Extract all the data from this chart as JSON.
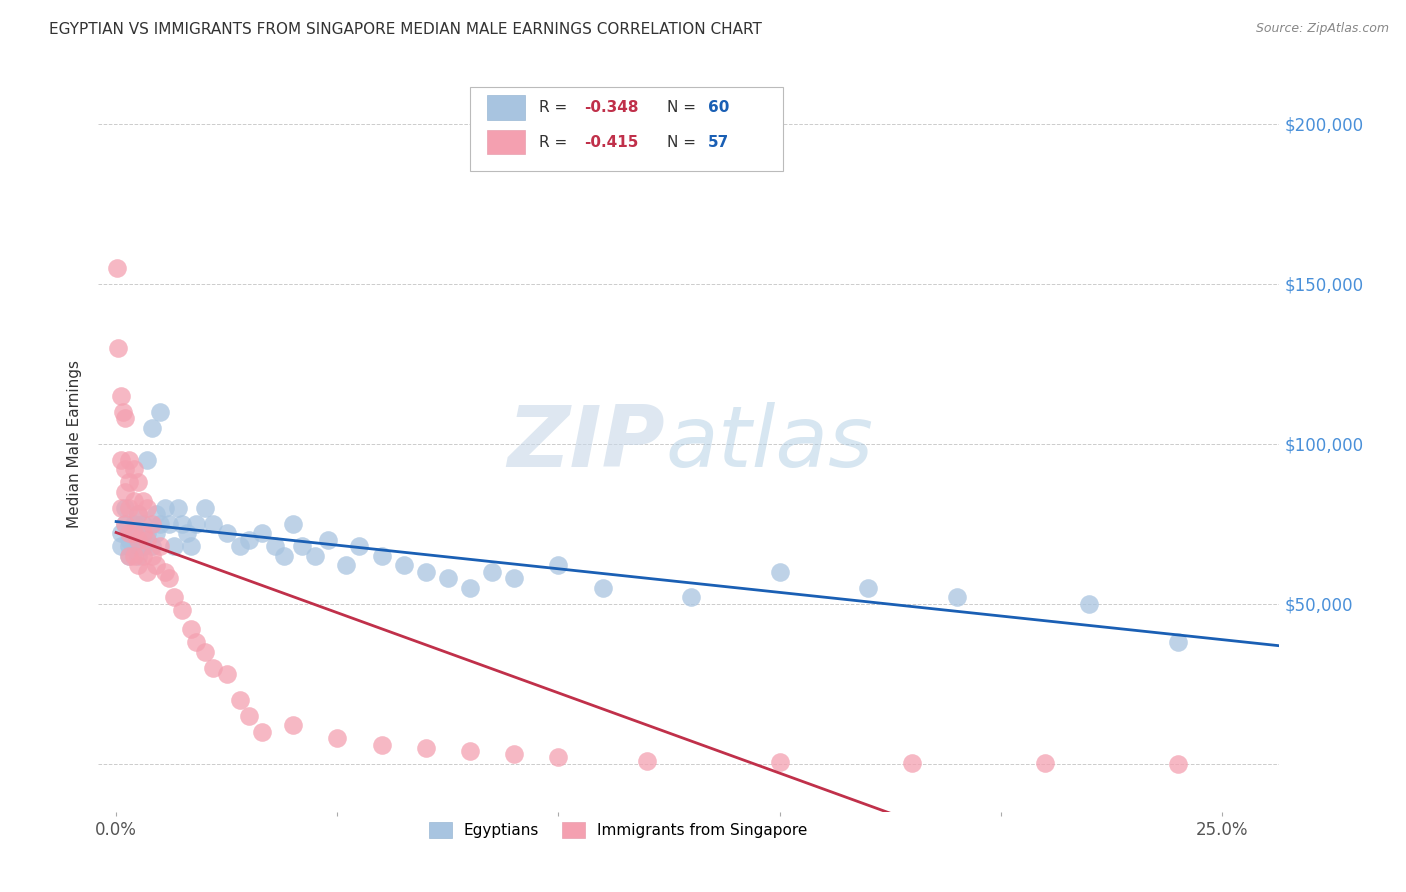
{
  "title": "EGYPTIAN VS IMMIGRANTS FROM SINGAPORE MEDIAN MALE EARNINGS CORRELATION CHART",
  "source": "Source: ZipAtlas.com",
  "ylabel": "Median Male Earnings",
  "xlabel_ticks": [
    "0.0%",
    "",
    "",
    "",
    "",
    "25.0%"
  ],
  "xlabel_vals": [
    0.0,
    0.05,
    0.1,
    0.15,
    0.2,
    0.25
  ],
  "ylabel_ticks": [
    "$200,000",
    "$150,000",
    "$100,000",
    "$50,000",
    ""
  ],
  "ylabel_vals": [
    200000,
    150000,
    100000,
    50000,
    0
  ],
  "ylim": [
    -15000,
    215000
  ],
  "xlim": [
    -0.004,
    0.263
  ],
  "blue_color": "#a8c4e0",
  "pink_color": "#f4a0b0",
  "blue_line_color": "#1a5fb4",
  "pink_line_color": "#c0304a",
  "grid_color": "#cccccc",
  "title_color": "#333333",
  "right_ytick_color": "#4a90d9",
  "egyptians_x": [
    0.001,
    0.001,
    0.002,
    0.002,
    0.003,
    0.003,
    0.003,
    0.004,
    0.004,
    0.005,
    0.005,
    0.005,
    0.006,
    0.006,
    0.006,
    0.007,
    0.007,
    0.008,
    0.008,
    0.009,
    0.009,
    0.01,
    0.01,
    0.011,
    0.012,
    0.013,
    0.014,
    0.015,
    0.016,
    0.017,
    0.018,
    0.02,
    0.022,
    0.025,
    0.028,
    0.03,
    0.033,
    0.036,
    0.038,
    0.04,
    0.042,
    0.045,
    0.048,
    0.052,
    0.055,
    0.06,
    0.065,
    0.07,
    0.075,
    0.08,
    0.085,
    0.09,
    0.1,
    0.11,
    0.13,
    0.15,
    0.17,
    0.19,
    0.22,
    0.24
  ],
  "egyptians_y": [
    72000,
    68000,
    75000,
    80000,
    65000,
    70000,
    68000,
    75000,
    72000,
    78000,
    68000,
    65000,
    72000,
    68000,
    75000,
    95000,
    72000,
    105000,
    68000,
    78000,
    72000,
    110000,
    75000,
    80000,
    75000,
    68000,
    80000,
    75000,
    72000,
    68000,
    75000,
    80000,
    75000,
    72000,
    68000,
    70000,
    72000,
    68000,
    65000,
    75000,
    68000,
    65000,
    70000,
    62000,
    68000,
    65000,
    62000,
    60000,
    58000,
    55000,
    60000,
    58000,
    62000,
    55000,
    52000,
    60000,
    55000,
    52000,
    50000,
    38000
  ],
  "singapore_x": [
    0.0002,
    0.0005,
    0.001,
    0.001,
    0.001,
    0.0015,
    0.002,
    0.002,
    0.002,
    0.002,
    0.003,
    0.003,
    0.003,
    0.003,
    0.003,
    0.004,
    0.004,
    0.004,
    0.004,
    0.005,
    0.005,
    0.005,
    0.005,
    0.006,
    0.006,
    0.006,
    0.007,
    0.007,
    0.007,
    0.008,
    0.008,
    0.009,
    0.01,
    0.011,
    0.012,
    0.013,
    0.015,
    0.017,
    0.018,
    0.02,
    0.022,
    0.025,
    0.028,
    0.03,
    0.033,
    0.04,
    0.05,
    0.06,
    0.07,
    0.08,
    0.09,
    0.1,
    0.12,
    0.15,
    0.18,
    0.21,
    0.24
  ],
  "singapore_y": [
    155000,
    130000,
    115000,
    95000,
    80000,
    110000,
    108000,
    92000,
    85000,
    75000,
    95000,
    88000,
    80000,
    72000,
    65000,
    92000,
    82000,
    72000,
    65000,
    88000,
    78000,
    70000,
    62000,
    82000,
    72000,
    65000,
    80000,
    70000,
    60000,
    75000,
    65000,
    62000,
    68000,
    60000,
    58000,
    52000,
    48000,
    42000,
    38000,
    35000,
    30000,
    28000,
    20000,
    15000,
    10000,
    12000,
    8000,
    6000,
    5000,
    4000,
    3000,
    2000,
    1000,
    500,
    300,
    100,
    50
  ],
  "legend_r1": "R = -0.348",
  "legend_n1": "N = 60",
  "legend_r2": "R = -0.415",
  "legend_n2": "N = 57",
  "r_color": "#c0304a",
  "n_color": "#1a5fb4",
  "watermark_color": "#d8e8f5",
  "bottom_legend_labels": [
    "Egyptians",
    "Immigrants from Singapore"
  ]
}
